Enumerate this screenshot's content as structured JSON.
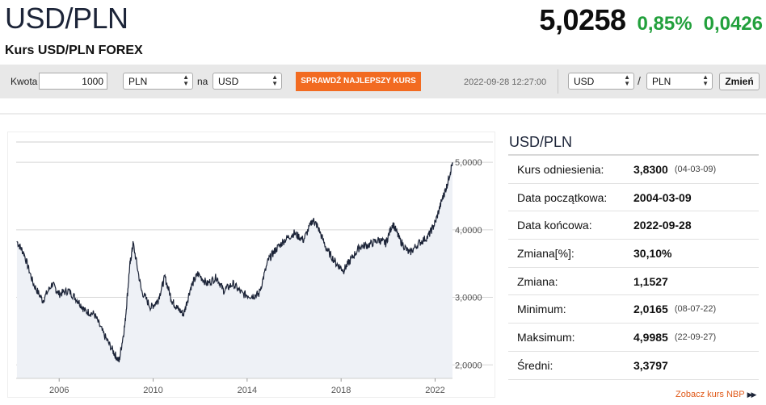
{
  "header": {
    "title": "USD/PLN",
    "subtitle": "Kurs USD/PLN FOREX",
    "price": "5,0258",
    "change_pct": "0,85%",
    "change_abs": "0,0426"
  },
  "toolbar": {
    "amount_label": "Kwota",
    "amount_value": "1000",
    "from_currency": "PLN",
    "to_label": "na",
    "to_currency": "USD",
    "best_rate_button": "SPRAWDŹ NAJLEPSZY KURS",
    "datetime": "2022-09-28 12:27:00",
    "pair_base": "USD",
    "pair_separator": "/",
    "pair_quote": "PLN",
    "change_button": "Zmień"
  },
  "colors": {
    "accent_orange": "#f26b21",
    "positive_green": "#22a03c",
    "line_navy": "#1c2438",
    "area_fill": "#eef1f6"
  },
  "chart_data": {
    "type": "line",
    "x": [
      2004.2,
      2004.5,
      2004.9,
      2005.3,
      2005.7,
      2006.0,
      2006.4,
      2006.8,
      2007.1,
      2007.5,
      2007.9,
      2008.3,
      2008.55,
      2008.8,
      2009.0,
      2009.15,
      2009.5,
      2009.9,
      2010.2,
      2010.5,
      2010.8,
      2011.0,
      2011.3,
      2011.6,
      2011.9,
      2012.3,
      2012.7,
      2013.0,
      2013.4,
      2013.8,
      2014.2,
      2014.5,
      2014.9,
      2015.2,
      2015.6,
      2016.0,
      2016.4,
      2016.8,
      2017.0,
      2017.4,
      2017.8,
      2018.1,
      2018.4,
      2018.8,
      2019.2,
      2019.6,
      2019.9,
      2020.2,
      2020.5,
      2020.9,
      2021.3,
      2021.7,
      2022.0,
      2022.3,
      2022.5,
      2022.74
    ],
    "values": [
      3.83,
      3.65,
      3.2,
      2.95,
      3.2,
      3.05,
      3.1,
      2.95,
      2.8,
      2.75,
      2.45,
      2.2,
      2.05,
      2.6,
      3.45,
      3.8,
      3.1,
      2.85,
      2.95,
      3.3,
      2.95,
      2.85,
      2.75,
      3.15,
      3.35,
      3.2,
      3.3,
      3.1,
      3.2,
      3.05,
      3.02,
      3.05,
      3.55,
      3.7,
      3.85,
      3.95,
      3.85,
      4.15,
      4.05,
      3.7,
      3.5,
      3.4,
      3.55,
      3.75,
      3.78,
      3.85,
      3.8,
      4.1,
      3.85,
      3.65,
      3.8,
      3.9,
      4.1,
      4.45,
      4.65,
      4.9985
    ],
    "title": "",
    "xlabel": "",
    "ylabel": "",
    "x_ticks": [
      "2006",
      "2010",
      "2014",
      "2018",
      "2022"
    ],
    "y_ticks": [
      "2,0000",
      "3,0000",
      "4,0000",
      "5,0000"
    ],
    "xlim": [
      2004.17,
      2022.74
    ],
    "ylim": [
      1.8,
      5.3
    ],
    "grid": true
  },
  "stats": {
    "title": "USD/PLN",
    "rows": [
      {
        "label": "Kurs odniesienia:",
        "value": "3,8300",
        "date": "(04-03-09)"
      },
      {
        "label": "Data początkowa:",
        "value": "2004-03-09",
        "date": ""
      },
      {
        "label": "Data końcowa:",
        "value": "2022-09-28",
        "date": ""
      },
      {
        "label": "Zmiana[%]:",
        "value": "30,10%",
        "date": ""
      },
      {
        "label": "Zmiana:",
        "value": "1,1527",
        "date": ""
      },
      {
        "label": "Minimum:",
        "value": "2,0165",
        "date": "(08-07-22)"
      },
      {
        "label": "Maksimum:",
        "value": "4,9985",
        "date": "(22-09-27)"
      },
      {
        "label": "Średni:",
        "value": "3,3797",
        "date": ""
      }
    ],
    "nbp_link": "Zobacz kurs NBP"
  }
}
